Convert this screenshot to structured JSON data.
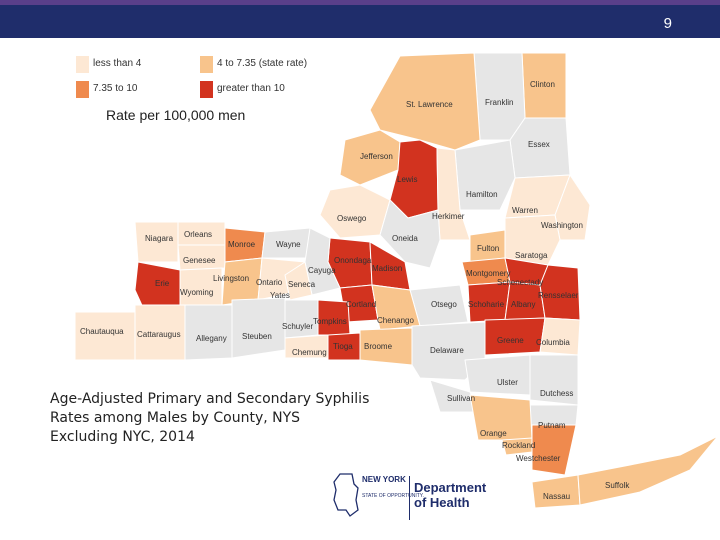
{
  "slide": {
    "number": "9"
  },
  "colors": {
    "header_bar": "#1f2d6b",
    "header_accent": "#5a3f8a",
    "cat1": "#fde8d4",
    "cat2": "#f8c48c",
    "cat3": "#ef8a4e",
    "cat4": "#d2331f",
    "none": "#e6e6e6"
  },
  "legend": {
    "items": [
      {
        "label": "less than 4",
        "color": "#fde8d4"
      },
      {
        "label": "4 to 7.35 (state rate)",
        "color": "#f8c48c"
      },
      {
        "label": "7.35 to 10",
        "color": "#ef8a4e"
      },
      {
        "label": "greater than 10",
        "color": "#d2331f"
      }
    ]
  },
  "map_title": "Rate per 100,000 men",
  "caption": {
    "lines": [
      "Age-Adjusted Primary and Secondary Syphilis",
      "Rates among Males by County, NYS",
      "Excluding NYC, 2014"
    ]
  },
  "counties": {
    "clinton": "Clinton",
    "franklin": "Franklin",
    "st_lawrence": "St. Lawrence",
    "essex": "Essex",
    "jefferson": "Jefferson",
    "lewis": "Lewis",
    "hamilton": "Hamilton",
    "warren": "Warren",
    "washington": "Washington",
    "herkimer": "Herkimer",
    "oswego": "Oswego",
    "oneida": "Oneida",
    "fulton": "Fulton",
    "saratoga": "Saratoga",
    "orleans": "Orleans",
    "niagara": "Niagara",
    "monroe": "Monroe",
    "wayne": "Wayne",
    "onondaga": "Onondaga",
    "madison": "Madison",
    "montgomery": "Montgomery",
    "schenectady": "Schenectady",
    "genesee": "Genesee",
    "cayuga": "Cayuga",
    "livingston": "Livingston",
    "ontario": "Ontario",
    "seneca": "Seneca",
    "erie": "Erie",
    "wyoming": "Wyoming",
    "yates": "Yates",
    "cortland": "Cortland",
    "schoharie": "Schoharie",
    "albany": "Albany",
    "rensselaer": "Rensselaer",
    "otsego": "Otsego",
    "chenango": "Chenango",
    "chautauqua": "Chautauqua",
    "cattaraugus": "Cattaraugus",
    "allegany": "Allegany",
    "steuben": "Steuben",
    "schuyler": "Schuyler",
    "tompkins": "Tompkins",
    "greene": "Greene",
    "columbia": "Columbia",
    "chemung": "Chemung",
    "tioga": "Tioga",
    "broome": "Broome",
    "delaware": "Delaware",
    "ulster": "Ulster",
    "dutchess": "Dutchess",
    "sullivan": "Sullivan",
    "putnam": "Putnam",
    "orange": "Orange",
    "rockland": "Rockland",
    "westchester": "Westchester",
    "suffolk": "Suffolk",
    "nassau": "Nassau"
  },
  "logo": {
    "state": "NEW YORK",
    "tagline": "STATE OF OPPORTUNITY.",
    "dept_line1": "Department",
    "dept_line2": "of Health"
  }
}
